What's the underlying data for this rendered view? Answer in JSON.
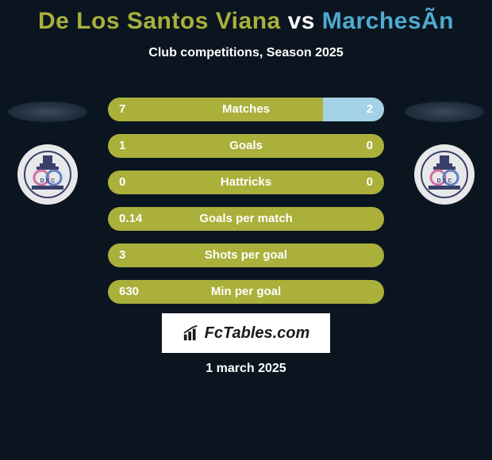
{
  "title": {
    "player1": "De Los Santos Viana",
    "vs": "vs",
    "player2": "MarchesÃ­n",
    "color1": "#aab03a",
    "color_vs": "#ffffff",
    "color2": "#4faad0",
    "fontsize": 30
  },
  "subtitle": "Club competitions, Season 2025",
  "colors": {
    "background": "#0a1520",
    "bar_left": "#aab03a",
    "bar_right": "#a3d1e6",
    "text": "#ffffff"
  },
  "club_badge": {
    "bg": "#e8e8ea",
    "top": "#3a3f6a",
    "pink": "#d070a0",
    "blue": "#6080c0"
  },
  "stats": [
    {
      "label": "Matches",
      "left_val": "7",
      "right_val": "2",
      "left_pct": 77.8,
      "right_pct": 22.2
    },
    {
      "label": "Goals",
      "left_val": "1",
      "right_val": "0",
      "left_pct": 100,
      "right_pct": 0
    },
    {
      "label": "Hattricks",
      "left_val": "0",
      "right_val": "0",
      "left_pct": 100,
      "right_pct": 0
    },
    {
      "label": "Goals per match",
      "left_val": "0.14",
      "right_val": "",
      "left_pct": 100,
      "right_pct": 0
    },
    {
      "label": "Shots per goal",
      "left_val": "3",
      "right_val": "",
      "left_pct": 100,
      "right_pct": 0
    },
    {
      "label": "Min per goal",
      "left_val": "630",
      "right_val": "",
      "left_pct": 100,
      "right_pct": 0
    }
  ],
  "site": {
    "name": "FcTables.com"
  },
  "date": "1 march 2025"
}
